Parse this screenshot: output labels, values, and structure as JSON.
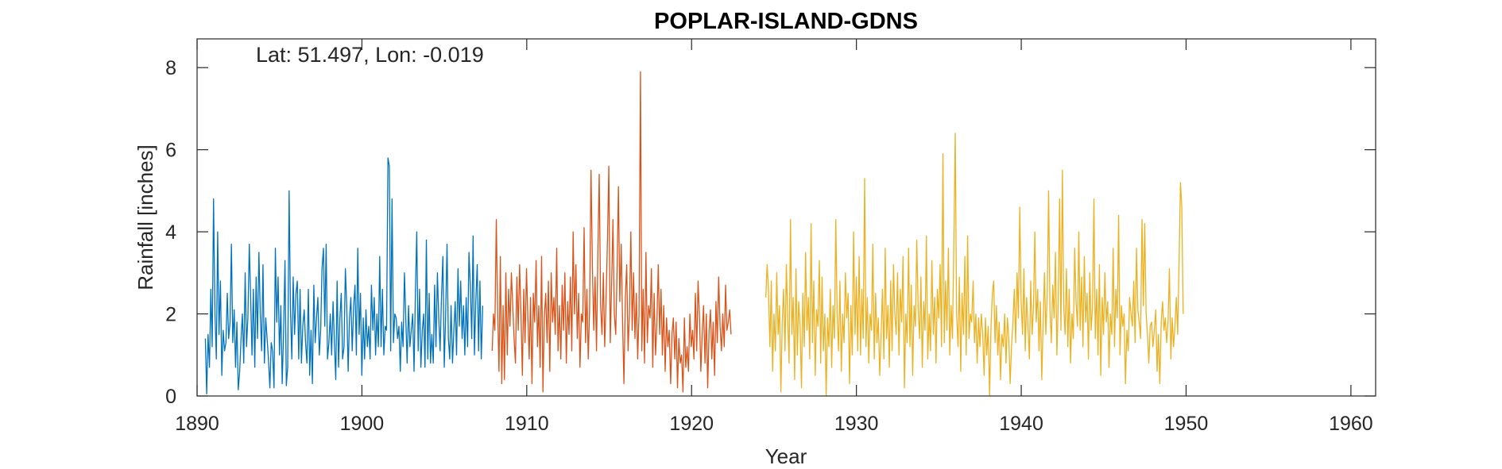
{
  "chart_data": {
    "type": "line",
    "title": "POPLAR-ISLAND-GDNS",
    "annotation": "Lat: 51.497, Lon: -0.019",
    "xlabel": "Year",
    "ylabel": "Rainfall [inches]",
    "xlim": [
      1890,
      1961.5
    ],
    "ylim": [
      0,
      8.7
    ],
    "xticks": [
      1890,
      1900,
      1910,
      1920,
      1930,
      1940,
      1950,
      1960
    ],
    "yticks": [
      0,
      2,
      4,
      6,
      8
    ],
    "grid": false,
    "series": [
      {
        "color": "#0072BD",
        "start": 1890.5,
        "step": 0.0833,
        "values": [
          1.4,
          0.05,
          1.5,
          0.7,
          2.6,
          1.2,
          4.8,
          2.0,
          0.9,
          4.0,
          1.5,
          2.8,
          0.5,
          1.6,
          1.1,
          1.3,
          2.5,
          1.4,
          1.8,
          3.7,
          1.3,
          2.1,
          0.7,
          1.8,
          0.15,
          0.6,
          1.4,
          2.0,
          0.8,
          3.0,
          1.2,
          1.9,
          3.7,
          2.4,
          1.0,
          2.6,
          0.7,
          2.9,
          1.4,
          3.5,
          2.0,
          1.1,
          3.2,
          0.8,
          1.9,
          1.4,
          0.9,
          0.2,
          1.3,
          1.1,
          0.2,
          3.6,
          1.8,
          2.9,
          1.0,
          2.2,
          0.3,
          1.6,
          3.3,
          0.25,
          0.7,
          5.0,
          2.1,
          0.9,
          2.9,
          1.5,
          2.5,
          2.8,
          0.9,
          2.6,
          0.8,
          1.7,
          2.1,
          1.3,
          0.8,
          2.6,
          0.5,
          1.6,
          0.3,
          2.7,
          1.3,
          1.9,
          2.4,
          1.0,
          1.6,
          3.1,
          3.6,
          1.7,
          3.7,
          0.9,
          1.3,
          2.0,
          1.0,
          2.3,
          1.3,
          0.4,
          2.8,
          0.7,
          1.9,
          2.5,
          0.9,
          1.2,
          3.1,
          2.2,
          0.6,
          1.9,
          2.4,
          1.1,
          2.2,
          2.7,
          1.0,
          3.6,
          1.5,
          2.5,
          0.5,
          1.9,
          0.9,
          2.1,
          1.2,
          1.7,
          0.9,
          2.7,
          1.6,
          2.4,
          1.0,
          2.0,
          1.2,
          3.4,
          1.2,
          2.6,
          1.0,
          1.7,
          1.6,
          5.8,
          5.6,
          1.1,
          4.8,
          1.3,
          2.0,
          1.9,
          1.4,
          1.7,
          0.6,
          1.8,
          1.2,
          3.0,
          1.9,
          0.8,
          2.2,
          1.2,
          1.6,
          2.0,
          0.6,
          2.5,
          4.0,
          1.1,
          2.6,
          0.7,
          1.6,
          2.0,
          0.7,
          3.8,
          0.9,
          2.5,
          0.8,
          1.5,
          0.8,
          2.7,
          1.2,
          3.0,
          1.9,
          1.1,
          2.4,
          3.4,
          0.7,
          1.9,
          3.7,
          1.4,
          0.9,
          2.2,
          0.8,
          1.6,
          2.3,
          1.0,
          3.1,
          1.7,
          2.8,
          1.4,
          2.2,
          1.0,
          2.4,
          1.2,
          3.5,
          2.7,
          1.4,
          3.9,
          1.0,
          2.3,
          3.2,
          1.1,
          2.8,
          0.9,
          2.2
        ]
      },
      {
        "color": "#D95319",
        "start": 1907.9,
        "step": 0.0833,
        "values": [
          1.1,
          2.0,
          1.6,
          4.3,
          2.1,
          0.6,
          3.4,
          0.3,
          2.2,
          0.4,
          3.0,
          1.0,
          2.6,
          1.7,
          3.0,
          2.2,
          1.4,
          0.8,
          2.9,
          1.6,
          3.2,
          2.0,
          0.5,
          2.6,
          1.3,
          3.1,
          1.9,
          0.9,
          2.4,
          0.3,
          2.5,
          1.8,
          3.3,
          1.2,
          2.2,
          0.7,
          3.4,
          0.1,
          1.9,
          2.5,
          1.3,
          2.8,
          0.6,
          3.0,
          1.8,
          2.4,
          1.5,
          3.6,
          1.1,
          2.2,
          0.9,
          2.7,
          1.6,
          3.0,
          0.8,
          2.3,
          1.5,
          2.9,
          1.1,
          4.0,
          2.0,
          3.2,
          1.4,
          2.5,
          0.7,
          2.0,
          1.8,
          4.1,
          1.3,
          2.6,
          0.9,
          2.1,
          5.5,
          3.2,
          1.6,
          2.9,
          1.1,
          3.5,
          5.4,
          2.2,
          1.5,
          3.0,
          1.2,
          2.4,
          3.8,
          5.6,
          1.3,
          2.7,
          4.3,
          2.0,
          1.5,
          3.1,
          5.1,
          2.3,
          3.7,
          1.8,
          0.3,
          2.4,
          3.2,
          1.1,
          2.0,
          4.0,
          1.6,
          3.0,
          1.4,
          2.5,
          0.9,
          2.0,
          7.9,
          1.1,
          2.6,
          0.8,
          3.5,
          1.3,
          2.2,
          1.9,
          3.1,
          0.7,
          2.5,
          1.0,
          1.8,
          3.2,
          1.5,
          2.6,
          1.0,
          2.2,
          0.6,
          1.9,
          1.2,
          1.6,
          0.3,
          1.5,
          1.9,
          0.9,
          1.8,
          0.2,
          1.4,
          0.8,
          1.0,
          0.1,
          1.9,
          0.7,
          1.2,
          0.6,
          2.0,
          1.2,
          1.6,
          0.9,
          2.5,
          1.1,
          2.8,
          1.9,
          0.6,
          1.5,
          2.2,
          0.8,
          2.0,
          0.2,
          1.6,
          2.1,
          0.9,
          1.8,
          0.5,
          2.3,
          1.3,
          2.9,
          1.7,
          1.1,
          2.0,
          1.2,
          2.7,
          1.6,
          1.8,
          2.1,
          1.5
        ]
      },
      {
        "color": "#EDB120",
        "start": 1924.5,
        "step": 0.0833,
        "values": [
          2.4,
          3.2,
          2.6,
          1.2,
          2.8,
          0.6,
          2.0,
          1.1,
          3.0,
          1.5,
          2.2,
          0.1,
          1.8,
          2.6,
          1.1,
          3.2,
          1.9,
          0.8,
          4.3,
          1.5,
          2.4,
          0.4,
          3.1,
          1.0,
          2.3,
          1.7,
          0.2,
          2.5,
          1.2,
          3.5,
          1.6,
          2.4,
          0.9,
          4.2,
          1.3,
          2.8,
          0.5,
          2.1,
          1.7,
          3.3,
          0.8,
          2.9,
          1.1,
          2.0,
          0.0,
          1.9,
          1.2,
          2.6,
          0.7,
          2.2,
          1.4,
          4.3,
          2.0,
          1.1,
          2.8,
          0.6,
          2.0,
          1.3,
          3.0,
          1.9,
          2.5,
          0.3,
          2.2,
          1.0,
          4.0,
          1.5,
          2.9,
          1.1,
          3.4,
          1.0,
          2.6,
          1.4,
          5.3,
          1.2,
          2.4,
          0.8,
          2.0,
          1.6,
          3.7,
          0.9,
          2.5,
          1.3,
          1.9,
          0.5,
          1.5,
          2.6,
          0.9,
          3.6,
          1.4,
          2.2,
          0.7,
          2.8,
          1.1,
          3.2,
          2.0,
          1.5,
          3.0,
          1.0,
          2.6,
          1.8,
          3.4,
          0.2,
          2.0,
          1.3,
          3.6,
          1.2,
          2.7,
          0.5,
          2.2,
          1.7,
          3.8,
          2.1,
          1.4,
          2.9,
          0.7,
          2.3,
          1.6,
          3.9,
          0.9,
          2.0,
          1.1,
          3.3,
          1.5,
          2.4,
          0.8,
          2.6,
          1.9,
          3.2,
          1.2,
          5.9,
          1.3,
          2.8,
          1.6,
          3.6,
          1.0,
          2.2,
          1.4,
          3.8,
          6.4,
          2.0,
          1.2,
          2.9,
          0.6,
          2.5,
          1.5,
          3.4,
          1.0,
          3.9,
          1.4,
          2.0,
          1.8,
          2.8,
          1.3,
          2.0,
          0.8,
          1.9,
          1.2,
          2.0,
          1.5,
          0.5,
          1.9,
          1.0,
          1.7,
          0.0,
          1.6,
          2.5,
          2.8,
          1.3,
          2.2,
          1.0,
          1.8,
          0.4,
          1.5,
          1.2,
          2.0,
          0.8,
          1.9,
          1.4,
          0.3,
          1.2,
          1.8,
          2.6,
          1.3,
          3.0,
          1.9,
          4.6,
          2.3,
          1.5,
          3.1,
          1.1,
          2.4,
          1.7,
          0.9,
          2.8,
          1.5,
          2.2,
          4.0,
          1.8,
          2.6,
          1.1,
          2.3,
          0.4,
          1.8,
          3.0,
          1.5,
          2.5,
          5.0,
          2.1,
          1.3,
          2.7,
          1.9,
          3.5,
          1.0,
          2.3,
          4.8,
          1.6,
          5.5,
          2.2,
          1.5,
          3.1,
          1.2,
          2.6,
          0.8,
          2.0,
          1.4,
          3.6,
          2.3,
          1.7,
          4.0,
          1.6,
          2.9,
          1.2,
          3.4,
          1.8,
          2.5,
          0.9,
          3.0,
          1.6,
          2.2,
          4.8,
          1.4,
          2.6,
          1.0,
          3.2,
          0.5,
          2.4,
          1.5,
          3.0,
          1.8,
          2.3,
          0.7,
          2.0,
          1.5,
          3.6,
          1.2,
          2.6,
          1.9,
          4.4,
          1.0,
          2.2,
          1.7,
          2.0,
          0.3,
          1.6,
          1.1,
          2.4,
          2.0,
          1.7,
          2.8,
          1.3,
          3.6,
          2.1,
          1.8,
          1.4,
          4.3,
          2.2,
          4.2,
          2.0,
          1.5,
          0.8,
          1.7,
          1.8,
          1.2,
          1.6,
          2.1,
          0.6,
          1.5,
          0.3,
          1.8,
          2.3,
          1.6,
          1.9,
          1.3,
          1.8,
          3.1,
          0.9,
          1.9,
          1.2,
          1.7,
          2.4,
          1.5,
          3.2,
          5.2,
          4.6,
          2.0
        ]
      }
    ]
  }
}
